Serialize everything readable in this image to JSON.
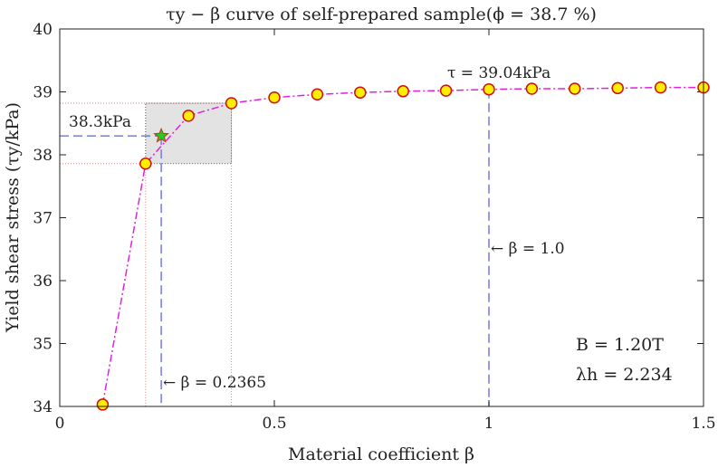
{
  "chart_data": {
    "type": "line",
    "title": "τy − β curve of self-prepared sample(ϕ = 38.7 %)",
    "xlabel": "Material coefficient β",
    "ylabel": "Yield shear stress (τy/kPa)",
    "xlim": [
      0,
      1.5
    ],
    "ylim": [
      34,
      40
    ],
    "xticks": [
      0,
      0.5,
      1,
      1.5
    ],
    "xtick_labels": [
      "0",
      "0.5",
      "1",
      "1.5"
    ],
    "yticks": [
      34,
      35,
      36,
      37,
      38,
      39,
      40
    ],
    "ytick_labels": [
      "34",
      "35",
      "36",
      "37",
      "38",
      "39",
      "40"
    ],
    "grid": false,
    "series": [
      {
        "x": [
          0.1,
          0.2,
          0.3,
          0.4,
          0.5,
          0.6,
          0.7,
          0.8,
          0.9,
          1.0,
          1.1,
          1.2,
          1.3,
          1.4,
          1.5
        ],
        "y": [
          34.03,
          37.86,
          38.62,
          38.82,
          38.91,
          38.96,
          38.99,
          39.01,
          39.02,
          39.04,
          39.05,
          39.05,
          39.06,
          39.07,
          39.07
        ],
        "color": "#e020e0",
        "marker_face": "#ffee00",
        "marker_edge": "#cc1111"
      }
    ],
    "highlight": {
      "x": 0.2365,
      "y": 38.3,
      "marker": "star",
      "color": "#22cc22"
    },
    "shaded_box": {
      "x": [
        0.2,
        0.4
      ],
      "y": [
        37.86,
        38.82
      ]
    },
    "annotations": {
      "star_value": "38.3kPa",
      "beta_star": "← β = 0.2365",
      "beta_one": "← β = 1.0",
      "tau_label": "τ = 39.04kPa",
      "B": "B = 1.20T",
      "lambda": "λh = 2.234"
    }
  }
}
